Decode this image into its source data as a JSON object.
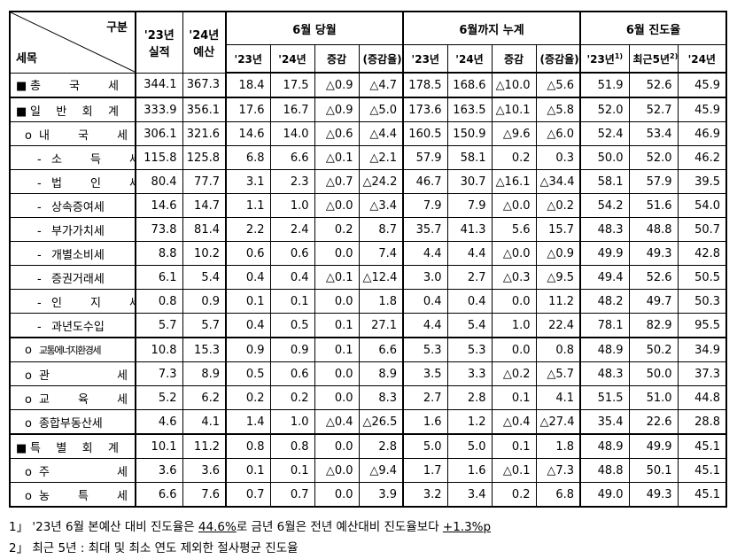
{
  "header": {
    "corner_top": "구분",
    "corner_bottom": "세목",
    "fixed_cols": [
      {
        "line1": "'23년",
        "line2": "실적"
      },
      {
        "line1": "'24년",
        "line2": "예산"
      }
    ],
    "groups": [
      {
        "title": "6월 당월",
        "cols": [
          {
            "label": "'23년"
          },
          {
            "label": "'24년"
          },
          {
            "label": "증감"
          },
          {
            "label": "(증감율)"
          }
        ]
      },
      {
        "title": "6월까지 누계",
        "cols": [
          {
            "label": "'23년"
          },
          {
            "label": "'24년"
          },
          {
            "label": "증감"
          },
          {
            "label": "(증감율)"
          }
        ]
      },
      {
        "title": "6월 진도율",
        "cols": [
          {
            "label": "'23년",
            "note": "1)"
          },
          {
            "label": "최근5년",
            "note": "2)"
          },
          {
            "label": "'24년"
          }
        ]
      }
    ]
  },
  "table": {
    "rows": [
      {
        "bullet": "■",
        "label": "총 국 세",
        "cells": [
          "344.1",
          "367.3",
          "18.4",
          "17.5",
          "△0.9",
          "△4.7",
          "178.5",
          "168.6",
          "△10.0",
          "△5.6",
          "51.9",
          "52.6",
          "45.9"
        ]
      },
      {
        "bullet": "■",
        "label": "일 반 회 계",
        "cells": [
          "333.9",
          "356.1",
          "17.6",
          "16.7",
          "△0.9",
          "△5.0",
          "173.6",
          "163.5",
          "△10.1",
          "△5.8",
          "52.0",
          "52.7",
          "45.9"
        ]
      },
      {
        "bullet": "o",
        "label": "내 국 세",
        "cells": [
          "306.1",
          "321.6",
          "14.6",
          "14.0",
          "△0.6",
          "△4.4",
          "160.5",
          "150.9",
          "△9.6",
          "△6.0",
          "52.4",
          "53.4",
          "46.9"
        ]
      },
      {
        "bullet": "-",
        "label": "소 득 세",
        "cells": [
          "115.8",
          "125.8",
          "6.8",
          "6.6",
          "△0.1",
          "△2.1",
          "57.9",
          "58.1",
          "0.2",
          "0.3",
          "50.0",
          "52.0",
          "46.2"
        ]
      },
      {
        "bullet": "-",
        "label": "법 인 세",
        "cells": [
          "80.4",
          "77.7",
          "3.1",
          "2.3",
          "△0.7",
          "△24.2",
          "46.7",
          "30.7",
          "△16.1",
          "△34.4",
          "58.1",
          "57.9",
          "39.5"
        ]
      },
      {
        "bullet": "-",
        "label": "상속증여세",
        "cells": [
          "14.6",
          "14.7",
          "1.1",
          "1.0",
          "△0.0",
          "△3.4",
          "7.9",
          "7.9",
          "△0.0",
          "△0.2",
          "54.2",
          "51.6",
          "54.0"
        ]
      },
      {
        "bullet": "-",
        "label": "부가가치세",
        "cells": [
          "73.8",
          "81.4",
          "2.2",
          "2.4",
          "0.2",
          "8.7",
          "35.7",
          "41.3",
          "5.6",
          "15.7",
          "48.3",
          "48.8",
          "50.7"
        ]
      },
      {
        "bullet": "-",
        "label": "개별소비세",
        "cells": [
          "8.8",
          "10.2",
          "0.6",
          "0.6",
          "0.0",
          "7.4",
          "4.4",
          "4.4",
          "△0.0",
          "△0.9",
          "49.9",
          "49.3",
          "42.8"
        ]
      },
      {
        "bullet": "-",
        "label": "증권거래세",
        "cells": [
          "6.1",
          "5.4",
          "0.4",
          "0.4",
          "△0.1",
          "△12.4",
          "3.0",
          "2.7",
          "△0.3",
          "△9.5",
          "49.4",
          "52.6",
          "50.5"
        ]
      },
      {
        "bullet": "-",
        "label": "인 지 세",
        "cells": [
          "0.8",
          "0.9",
          "0.1",
          "0.1",
          "0.0",
          "1.8",
          "0.4",
          "0.4",
          "0.0",
          "11.2",
          "48.2",
          "49.7",
          "50.3"
        ]
      },
      {
        "bullet": "-",
        "label": "과년도수입",
        "cells": [
          "5.7",
          "5.7",
          "0.4",
          "0.5",
          "0.1",
          "27.1",
          "4.4",
          "5.4",
          "1.0",
          "22.4",
          "78.1",
          "82.9",
          "95.5"
        ]
      },
      {
        "bullet": "o",
        "label": "교통에너지환경세",
        "cells": [
          "10.8",
          "15.3",
          "0.9",
          "0.9",
          "0.1",
          "6.6",
          "5.3",
          "5.3",
          "0.0",
          "0.8",
          "48.9",
          "50.2",
          "34.9"
        ]
      },
      {
        "bullet": "o",
        "label": "관 세",
        "cells": [
          "7.3",
          "8.9",
          "0.5",
          "0.6",
          "0.0",
          "8.9",
          "3.5",
          "3.3",
          "△0.2",
          "△5.7",
          "48.3",
          "50.0",
          "37.3"
        ]
      },
      {
        "bullet": "o",
        "label": "교 육 세",
        "cells": [
          "5.2",
          "6.2",
          "0.2",
          "0.2",
          "0.0",
          "8.3",
          "2.7",
          "2.8",
          "0.1",
          "4.1",
          "51.5",
          "51.0",
          "44.8"
        ]
      },
      {
        "bullet": "o",
        "label": "종합부동산세",
        "cells": [
          "4.6",
          "4.1",
          "1.4",
          "1.0",
          "△0.4",
          "△26.5",
          "1.6",
          "1.2",
          "△0.4",
          "△27.4",
          "35.4",
          "22.6",
          "28.8"
        ]
      },
      {
        "bullet": "■",
        "label": "특 별 회 계",
        "cells": [
          "10.1",
          "11.2",
          "0.8",
          "0.8",
          "0.0",
          "2.8",
          "5.0",
          "5.0",
          "0.1",
          "1.8",
          "48.9",
          "49.9",
          "45.1"
        ]
      },
      {
        "bullet": "o",
        "label": "주 세",
        "cells": [
          "3.6",
          "3.6",
          "0.1",
          "0.1",
          "△0.0",
          "△9.4",
          "1.7",
          "1.6",
          "△0.1",
          "△7.3",
          "48.8",
          "50.1",
          "45.1"
        ]
      },
      {
        "bullet": "o",
        "label": "농 특 세",
        "cells": [
          "6.6",
          "7.6",
          "0.7",
          "0.7",
          "0.0",
          "3.9",
          "3.2",
          "3.4",
          "0.2",
          "6.8",
          "49.0",
          "49.3",
          "45.1"
        ]
      }
    ]
  },
  "footnotes": [
    {
      "marker": "1」",
      "parts": [
        "'23년 6월 본예산 대비 진도율은 ",
        "44.6%",
        "로 금년 6월은 전년 예산대비 진도율보다 ",
        "+1.3%p"
      ]
    },
    {
      "marker": "2」",
      "parts": [
        "최근 5년 : 최대 및 최소 연도 제외한 절사평균 진도율"
      ]
    }
  ]
}
